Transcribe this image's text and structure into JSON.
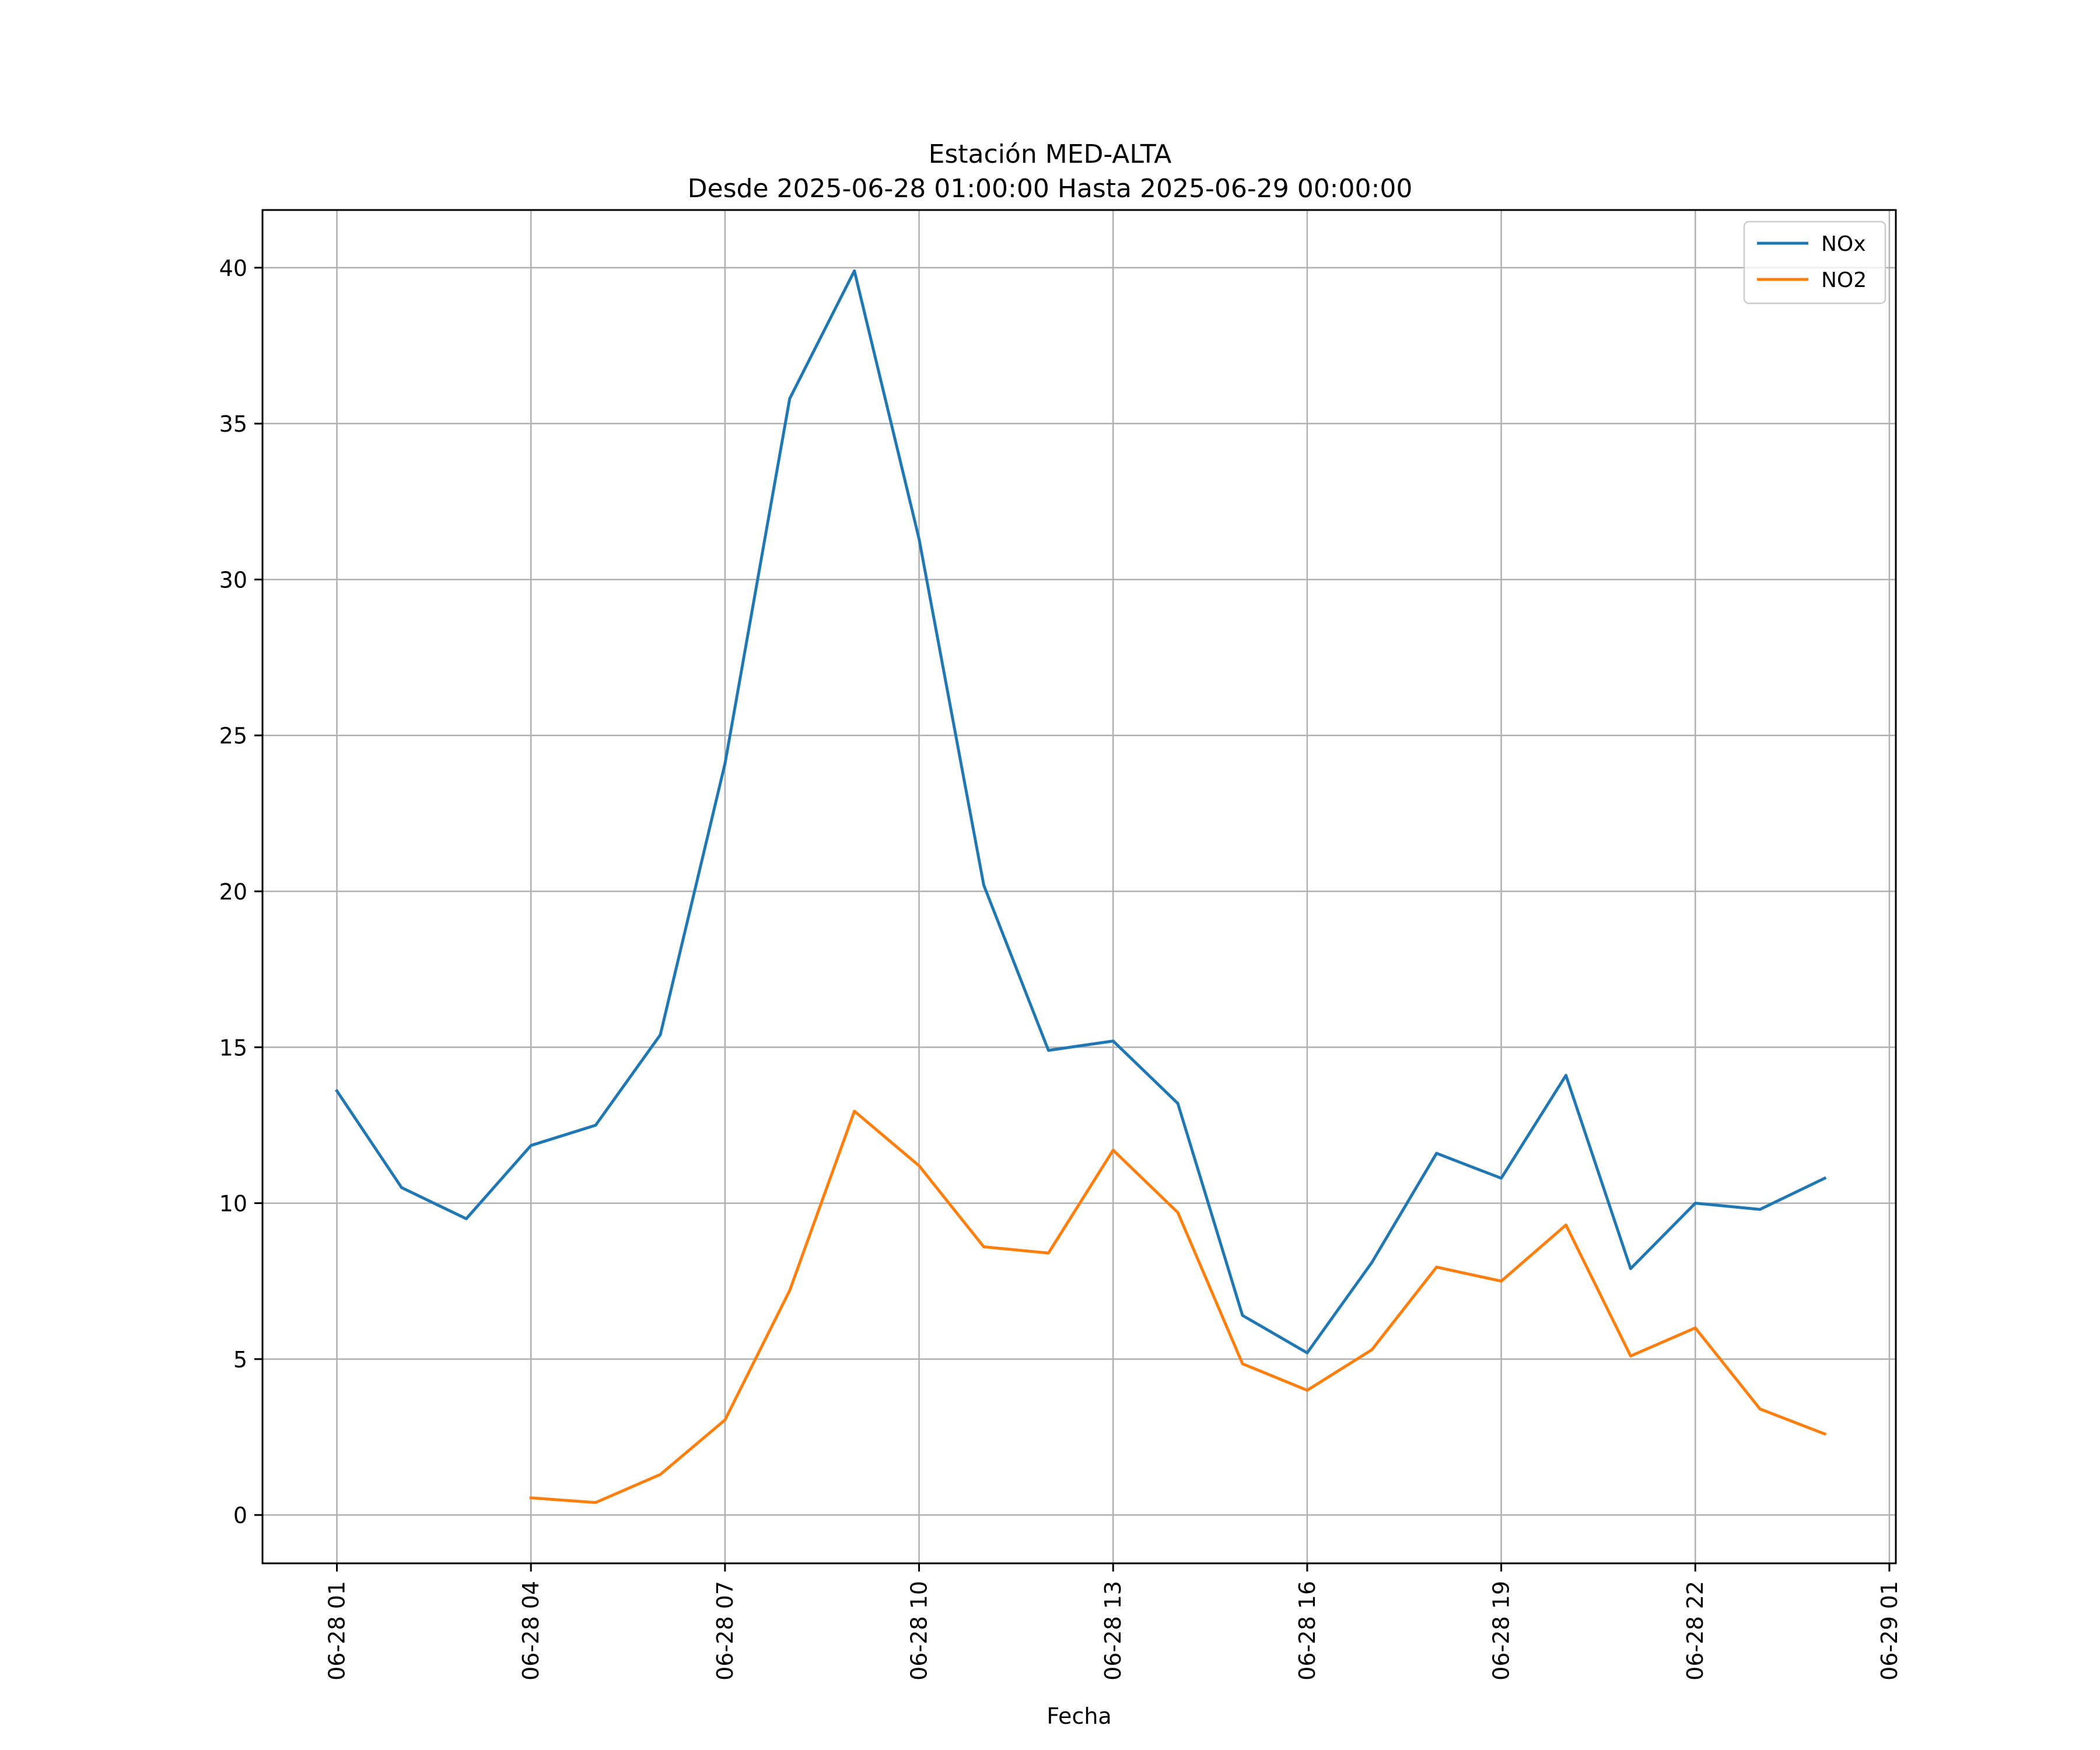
{
  "chart_data": {
    "type": "line",
    "title": "Estación MED-ALTA",
    "subtitle": "Desde 2025-06-28 01:00:00 Hasta 2025-06-29 00:00:00",
    "xlabel": "Fecha",
    "ylabel": "",
    "x_unit": "hour",
    "x": [
      1,
      2,
      3,
      4,
      5,
      6,
      7,
      8,
      9,
      10,
      11,
      12,
      13,
      14,
      15,
      16,
      17,
      18,
      19,
      20,
      21,
      22,
      23,
      24
    ],
    "x_ticks": [
      1,
      4,
      7,
      10,
      13,
      16,
      19,
      22,
      25
    ],
    "x_tick_labels": [
      "06-28 01",
      "06-28 04",
      "06-28 07",
      "06-28 10",
      "06-28 13",
      "06-28 16",
      "06-28 19",
      "06-28 22",
      "06-29 01"
    ],
    "xlim": [
      -0.15,
      25.1
    ],
    "ylim": [
      -1.55,
      41.85
    ],
    "y_ticks": [
      0,
      5,
      10,
      15,
      20,
      25,
      30,
      35,
      40
    ],
    "grid": true,
    "legend_position": "top-right",
    "series": [
      {
        "name": "NOx",
        "color": "#1f77b4",
        "values": [
          13.6,
          10.5,
          9.5,
          11.85,
          12.5,
          15.4,
          24.1,
          35.8,
          39.9,
          31.3,
          20.2,
          14.9,
          15.2,
          13.2,
          6.4,
          5.2,
          8.1,
          11.6,
          10.8,
          14.1,
          7.9,
          10.0,
          9.8,
          10.8
        ]
      },
      {
        "name": "NO2",
        "color": "#ff7f0e",
        "values": [
          null,
          null,
          null,
          0.55,
          0.4,
          1.3,
          3.05,
          7.2,
          12.95,
          11.2,
          8.6,
          8.4,
          11.7,
          9.7,
          4.85,
          4.0,
          5.3,
          7.95,
          7.5,
          9.3,
          5.1,
          6.0,
          3.4,
          2.6
        ]
      }
    ]
  }
}
